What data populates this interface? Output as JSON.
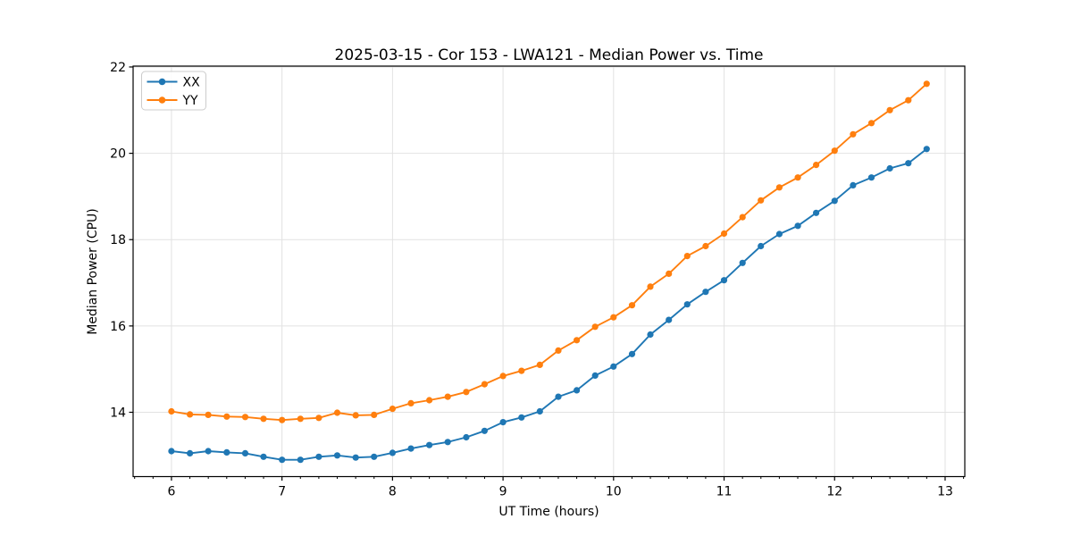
{
  "figure": {
    "title": "2025-03-15 - Cor 153 - LWA121 - Median Power vs. Time",
    "xlabel": "UT Time (hours)",
    "ylabel": "Median Power (CPU)"
  },
  "legend": {
    "entries": [
      {
        "label": "XX",
        "color": "#1f77b4"
      },
      {
        "label": "YY",
        "color": "#ff7f0e"
      }
    ]
  },
  "colors": {
    "series_xx": "#1f77b4",
    "series_yy": "#ff7f0e",
    "grid": "#e2e2e2",
    "spine": "#000000",
    "legend_border": "#cccccc"
  },
  "chart_data": {
    "type": "line",
    "title": "2025-03-15 - Cor 153 - LWA121 - Median Power vs. Time",
    "xlabel": "UT Time (hours)",
    "ylabel": "Median Power (CPU)",
    "grid": true,
    "legend_position": "upper left",
    "xlim": [
      5.653,
      13.178
    ],
    "ylim": [
      12.51,
      22.02
    ],
    "xticks": [
      6,
      7,
      8,
      9,
      10,
      11,
      12,
      13
    ],
    "yticks": [
      14,
      16,
      18,
      20,
      22
    ],
    "x_minor_tick_step": 0.1667,
    "marker": "circle",
    "x": [
      6,
      6.167,
      6.333,
      6.5,
      6.667,
      6.833,
      7,
      7.167,
      7.333,
      7.5,
      7.667,
      7.833,
      8,
      8.167,
      8.333,
      8.5,
      8.667,
      8.833,
      9,
      9.167,
      9.333,
      9.5,
      9.667,
      9.833,
      10,
      10.167,
      10.333,
      10.5,
      10.667,
      10.833,
      11,
      11.167,
      11.333,
      11.5,
      11.667,
      11.833,
      12,
      12.167,
      12.333,
      12.5,
      12.667,
      12.833
    ],
    "series": [
      {
        "name": "XX",
        "color": "#1f77b4",
        "values": [
          13.1,
          13.05,
          13.1,
          13.07,
          13.05,
          12.97,
          12.9,
          12.9,
          12.97,
          13.0,
          12.95,
          12.97,
          13.06,
          13.16,
          13.24,
          13.31,
          13.42,
          13.57,
          13.77,
          13.88,
          14.02,
          14.36,
          14.51,
          14.85,
          15.06,
          15.35,
          15.8,
          16.14,
          16.5,
          16.79,
          17.06,
          17.46,
          17.85,
          18.13,
          18.32,
          18.62,
          18.9,
          19.26,
          19.44,
          19.65,
          19.77,
          20.1
        ]
      },
      {
        "name": "YY",
        "color": "#ff7f0e",
        "values": [
          14.02,
          13.95,
          13.94,
          13.9,
          13.89,
          13.85,
          13.82,
          13.85,
          13.87,
          13.99,
          13.93,
          13.94,
          14.08,
          14.21,
          14.28,
          14.36,
          14.47,
          14.65,
          14.84,
          14.96,
          15.1,
          15.43,
          15.67,
          15.98,
          16.2,
          16.48,
          16.91,
          17.21,
          17.62,
          17.85,
          18.14,
          18.52,
          18.91,
          19.21,
          19.44,
          19.73,
          20.06,
          20.44,
          20.7,
          21.0,
          21.23,
          21.61
        ]
      }
    ]
  }
}
